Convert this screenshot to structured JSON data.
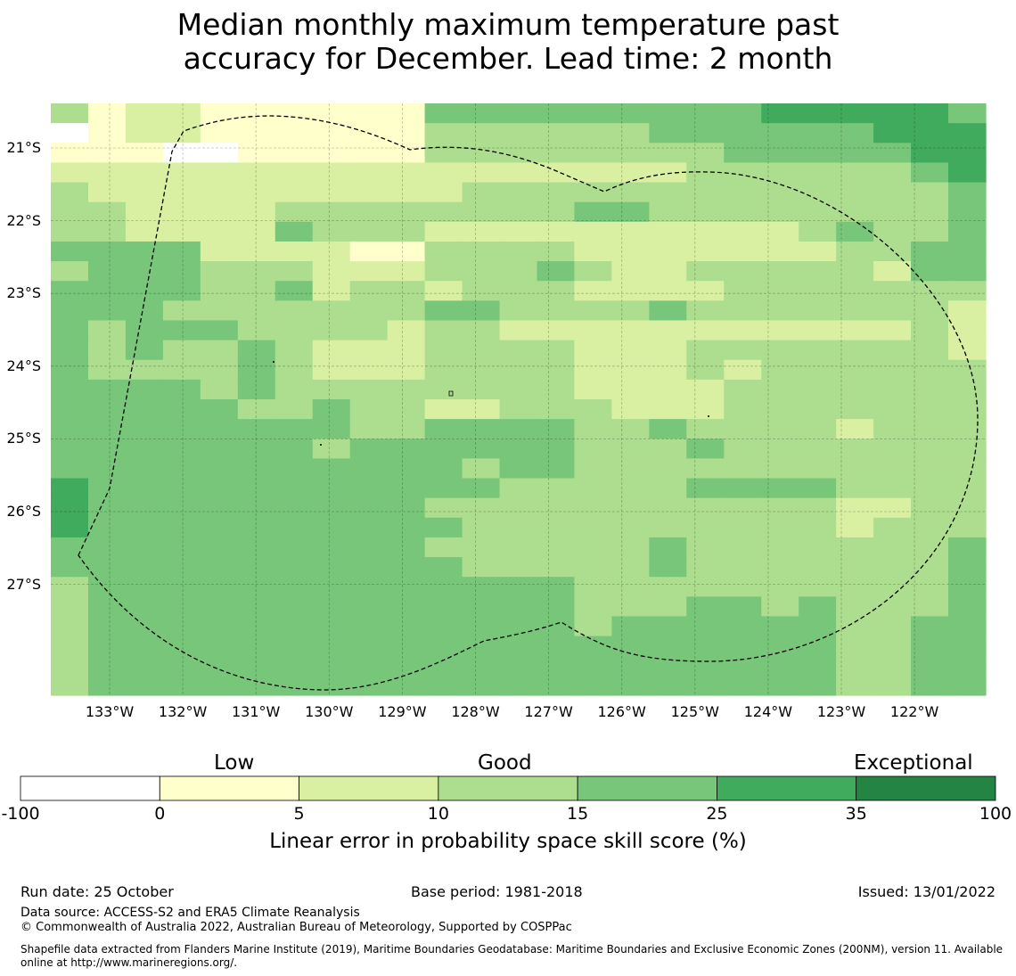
{
  "title": {
    "line1": "Median monthly maximum temperature past",
    "line2": "accuracy for December. Lead time: 2 month"
  },
  "map": {
    "lat_labels": [
      "21°S",
      "22°S",
      "23°S",
      "24°S",
      "25°S",
      "26°S",
      "27°S"
    ],
    "lon_labels": [
      "133°W",
      "132°W",
      "131°W",
      "130°W",
      "129°W",
      "128°W",
      "127°W",
      "126°W",
      "125°W",
      "124°W",
      "123°W",
      "122°W"
    ],
    "grid_rows": [
      "3122111111444444444555554",
      "0122111111333333444444555",
      "1110011111333333334444455",
      "2222222222222222233333345",
      "3222222222233333333333334",
      "3322223333333344333333334",
      "3322224333222222222234334",
      "4444222211333322222223344",
      "3444333222333432233333244",
      "4444334233233322223333333",
      "4443333333443333433333332",
      "4344433332332222222222232",
      "4343343222333322233333332",
      "4333343222333322232333333",
      "4444343333333322223333333",
      "4444433433223332223333333",
      "4444444433444433433332333",
      "4444444344444433343333333",
      "4444444444434433333333333",
      "5444444444443333344443333",
      "5444444444333333333332233",
      "5444444444433333333332333",
      "4444444444333333433333334",
      "4444444444433333433333334",
      "3444444444444433333333334",
      "3444444444444433344343334",
      "3444444444444434444443344",
      "3444444444444444444443344",
      "3444444444444444444443344",
      "3444444444444444444443344"
    ],
    "colors": [
      "#ffffff",
      "#ffffcc",
      "#d9f0a3",
      "#addd8e",
      "#78c679",
      "#41ab5d",
      "#238443"
    ]
  },
  "colorbar": {
    "categories": [
      "Low",
      "Good",
      "Exceptional"
    ],
    "ticks": [
      "-100",
      "0",
      "5",
      "10",
      "15",
      "25",
      "35",
      "100"
    ],
    "label": "Linear error in probability space skill score (%)"
  },
  "footer": {
    "run_date": "Run date: 25 October",
    "base_period": "Base period: 1981-2018",
    "issued": "Issued: 13/01/2022",
    "data_source": "Data source: ACCESS-S2 and ERA5 Climate Reanalysis",
    "copyright": "© Commonwealth of Australia 2022, Australian Bureau of Meteorology, Supported by COSPPac",
    "shapefile_line1": "Shapefile data extracted from Flanders Marine Institute (2019), Maritime Boundaries Geodatabase: Maritime Boundaries and Exclusive Economic Zones (200NM), version 11. Available",
    "shapefile_line2": "online at http://www.marineregions.org/."
  }
}
